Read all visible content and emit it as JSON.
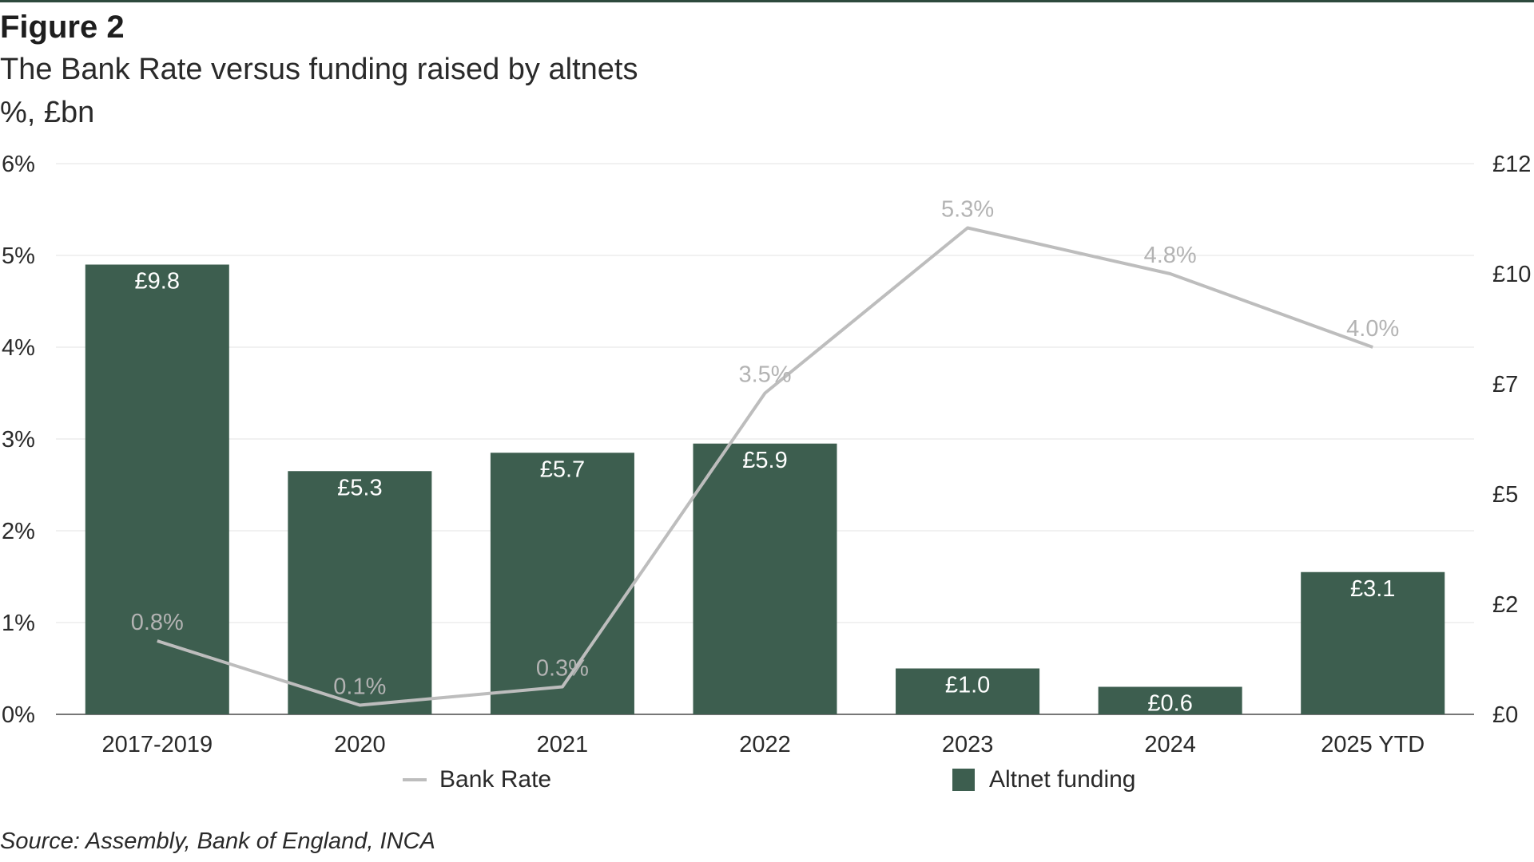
{
  "header": {
    "figure_label": "Figure 2",
    "title": "The Bank Rate versus funding raised by altnets",
    "units": "%, £bn"
  },
  "source": "Source: Assembly, Bank of England, INCA",
  "colors": {
    "bar": "#3d5e4f",
    "line": "#bdbdbd",
    "grid": "#e3e3e3",
    "axis": "#4a4a4a",
    "rule": "#2d4a3d"
  },
  "chart_data": {
    "type": "bar",
    "categories": [
      "2017-2019",
      "2020",
      "2021",
      "2022",
      "2023",
      "2024",
      "2025 YTD"
    ],
    "series": [
      {
        "name": "Altnet funding",
        "type": "bar",
        "axis": "right",
        "values": [
          9.8,
          5.3,
          5.7,
          5.9,
          1.0,
          0.6,
          3.1
        ],
        "labels": [
          "£9.8",
          "£5.3",
          "£5.7",
          "£5.9",
          "£1.0",
          "£0.6",
          "£3.1"
        ]
      },
      {
        "name": "Bank Rate",
        "type": "line",
        "axis": "left",
        "values": [
          0.8,
          0.1,
          0.3,
          3.5,
          5.3,
          4.8,
          4.0
        ],
        "labels": [
          "0.8%",
          "0.1%",
          "0.3%",
          "3.5%",
          "5.3%",
          "4.8%",
          "4.0%"
        ]
      }
    ],
    "y_left": {
      "lim": [
        0,
        6
      ],
      "ticks": [
        0,
        1,
        2,
        3,
        4,
        5,
        6
      ],
      "tick_labels": [
        "0%",
        "1%",
        "2%",
        "3%",
        "4%",
        "5%",
        "6%"
      ]
    },
    "y_right": {
      "lim": [
        0,
        12
      ],
      "ticks": [
        0,
        2.4,
        4.8,
        7.2,
        9.6,
        12
      ],
      "tick_labels": [
        "£0",
        "£2",
        "£5",
        "£7",
        "£10",
        "£12"
      ]
    },
    "grid": true,
    "legend": {
      "position": "bottom",
      "items": [
        "Bank Rate",
        "Altnet funding"
      ]
    }
  }
}
